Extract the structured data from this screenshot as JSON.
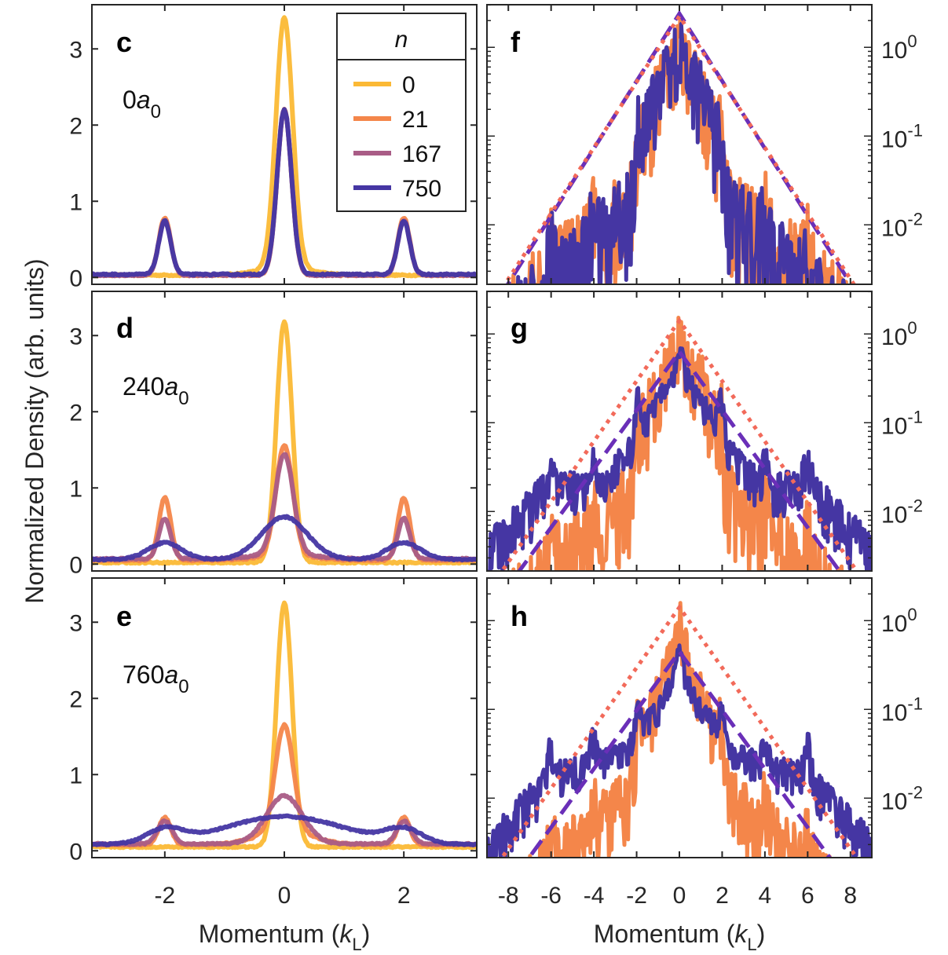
{
  "chart_data": {
    "type": "line",
    "figure_ylabel": "Normalized Density (arb. units)",
    "legend": {
      "title": "n",
      "placement": "top-right of panel c",
      "entries": [
        {
          "label": "0",
          "color": "#FBB935"
        },
        {
          "label": "21",
          "color": "#F4864A"
        },
        {
          "label": "167",
          "color": "#A95C86"
        },
        {
          "label": "750",
          "color": "#4536A3"
        }
      ]
    },
    "colors": {
      "n0": "#FBB935",
      "n21": "#F4864A",
      "n167": "#A95C86",
      "n750": "#4536A3",
      "fit_dotted": "#F26A5A",
      "fit_dashed": "#6A2FB8",
      "axis": "#262626"
    },
    "linear_panels": [
      {
        "panel": "c",
        "annotation": {
          "prefix": "0",
          "symbol": "a",
          "subscript": "0"
        },
        "xlabel": "",
        "xlim": [
          -3.22,
          3.22
        ],
        "ylim": [
          -0.09,
          3.58
        ],
        "xticks": [
          "-2",
          "0",
          "2"
        ],
        "yticks": [
          "0",
          "1",
          "2",
          "3"
        ],
        "peaks": {
          "n0": {
            "center": 3.32,
            "side": 0.0,
            "bg": 0.03,
            "width": 0.14,
            "side_width": 0.1,
            "shoulder": 0.15
          },
          "n21": {
            "center": 2.2,
            "side": 0.75,
            "bg": 0.03,
            "width": 0.12,
            "side_width": 0.1,
            "shoulder": 0.0
          },
          "n167": {
            "center": 2.2,
            "side": 0.72,
            "bg": 0.03,
            "width": 0.12,
            "side_width": 0.1,
            "shoulder": 0.0
          },
          "n750": {
            "center": 2.2,
            "side": 0.7,
            "bg": 0.04,
            "width": 0.12,
            "side_width": 0.1,
            "shoulder": 0.0
          }
        }
      },
      {
        "panel": "d",
        "annotation": {
          "prefix": "240",
          "symbol": "a",
          "subscript": "0"
        },
        "xlabel": "",
        "xlim": [
          -3.22,
          3.22
        ],
        "ylim": [
          -0.09,
          3.58
        ],
        "xticks": [
          "-2",
          "0",
          "2"
        ],
        "yticks": [
          "0",
          "1",
          "2",
          "3"
        ],
        "peaks": {
          "n0": {
            "center": 3.18,
            "side": 0.0,
            "bg": 0.02,
            "width": 0.13,
            "side_width": 0.1,
            "shoulder": 0.0
          },
          "n21": {
            "center": 1.5,
            "side": 0.82,
            "bg": 0.05,
            "width": 0.14,
            "side_width": 0.1,
            "shoulder": 0.1
          },
          "n167": {
            "center": 1.37,
            "side": 0.53,
            "bg": 0.07,
            "width": 0.15,
            "side_width": 0.1,
            "shoulder": 0.12
          },
          "n750": {
            "center": 0.62,
            "side": 0.22,
            "bg": 0.06,
            "width": 0.38,
            "side_width": 0.28,
            "shoulder": 0.0
          }
        }
      },
      {
        "panel": "e",
        "annotation": {
          "prefix": "760",
          "symbol": "a",
          "subscript": "0"
        },
        "xlabel": "Momentum (k_L)",
        "xlim": [
          -3.22,
          3.22
        ],
        "ylim": [
          -0.09,
          3.58
        ],
        "xticks": [
          "-2",
          "0",
          "2"
        ],
        "yticks": [
          "0",
          "1",
          "2",
          "3"
        ],
        "peaks": {
          "n0": {
            "center": 3.25,
            "side": 0.0,
            "bg": 0.05,
            "width": 0.13,
            "side_width": 0.1,
            "shoulder": 0.0
          },
          "n21": {
            "center": 1.47,
            "side": 0.36,
            "bg": 0.08,
            "width": 0.15,
            "side_width": 0.1,
            "shoulder": 0.3
          },
          "n167": {
            "center": 0.72,
            "side": 0.3,
            "bg": 0.09,
            "width": 0.3,
            "side_width": 0.12,
            "shoulder": 0.0
          },
          "n750": {
            "center": 0.45,
            "side": 0.18,
            "bg": 0.08,
            "width": 1.0,
            "side_width": 0.3,
            "shoulder": 0.0
          }
        }
      }
    ],
    "log_panels": [
      {
        "panel": "f",
        "xlabel": "",
        "xlim": [
          -9,
          9
        ],
        "ylim_log10": [
          -2.67,
          0.48
        ],
        "xticks": [
          "-8",
          "-6",
          "-4",
          "-2",
          "0",
          "2",
          "4",
          "6",
          "8"
        ],
        "yticks": [
          {
            "base": "10",
            "exp": "0"
          },
          {
            "base": "10",
            "exp": "-1"
          },
          {
            "base": "10",
            "exp": "-2"
          }
        ],
        "dotted_fit": {
          "peak_log10": 0.35,
          "slope_decades_per_kL": -0.37
        },
        "dashed_fit": {
          "peak_log10": 0.38,
          "slope_decades_per_kL": -0.38
        },
        "n21_profile": {
          "peak_log10": 0.25,
          "orders": [
            -0.15,
            -1.3,
            -1.7,
            -2.1
          ],
          "noise": 0.9,
          "floor": -3.0
        },
        "n750_profile": {
          "peak_log10": 0.25,
          "orders": [
            -0.15,
            -1.3,
            -1.8,
            -2.2
          ],
          "noise": 0.9,
          "floor": -3.0
        }
      },
      {
        "panel": "g",
        "xlabel": "",
        "xlim": [
          -9,
          9
        ],
        "ylim_log10": [
          -2.67,
          0.48
        ],
        "xticks": [
          "-8",
          "-6",
          "-4",
          "-2",
          "0",
          "2",
          "4",
          "6",
          "8"
        ],
        "yticks": [
          {
            "base": "10",
            "exp": "0"
          },
          {
            "base": "10",
            "exp": "-1"
          },
          {
            "base": "10",
            "exp": "-2"
          }
        ],
        "dotted_fit": {
          "peak_log10": 0.15,
          "slope_decades_per_kL": -0.34
        },
        "dashed_fit": {
          "peak_log10": -0.2,
          "slope_decades_per_kL": -0.33
        },
        "n21_profile": {
          "peak_log10": 0.1,
          "orders": [
            -0.2,
            -1.4,
            -1.8,
            -2.2
          ],
          "noise": 0.8,
          "floor": -3.0
        },
        "n750_profile": {
          "peak_log10": -0.2,
          "orders": [
            -0.65,
            -1.1,
            -1.6,
            -1.5
          ],
          "noise": 0.3,
          "floor": -2.8
        }
      },
      {
        "panel": "h",
        "xlabel": "Momentum (k_L)",
        "xlim": [
          -9,
          9
        ],
        "ylim_log10": [
          -2.67,
          0.48
        ],
        "xticks": [
          "-8",
          "-6",
          "-4",
          "-2",
          "0",
          "2",
          "4",
          "6",
          "8"
        ],
        "yticks": [
          {
            "base": "10",
            "exp": "0"
          },
          {
            "base": "10",
            "exp": "-1"
          },
          {
            "base": "10",
            "exp": "-2"
          }
        ],
        "dotted_fit": {
          "peak_log10": 0.15,
          "slope_decades_per_kL": -0.34
        },
        "dashed_fit": {
          "peak_log10": -0.35,
          "slope_decades_per_kL": -0.33
        },
        "n21_profile": {
          "peak_log10": 0.1,
          "orders": [
            -0.6,
            -1.6,
            -2.0,
            -2.4
          ],
          "noise": 0.6,
          "floor": -3.0
        },
        "n750_profile": {
          "peak_log10": -0.4,
          "orders": [
            -0.9,
            -1.3,
            -1.5,
            -1.6
          ],
          "noise": 0.25,
          "floor": -2.8
        }
      }
    ]
  }
}
